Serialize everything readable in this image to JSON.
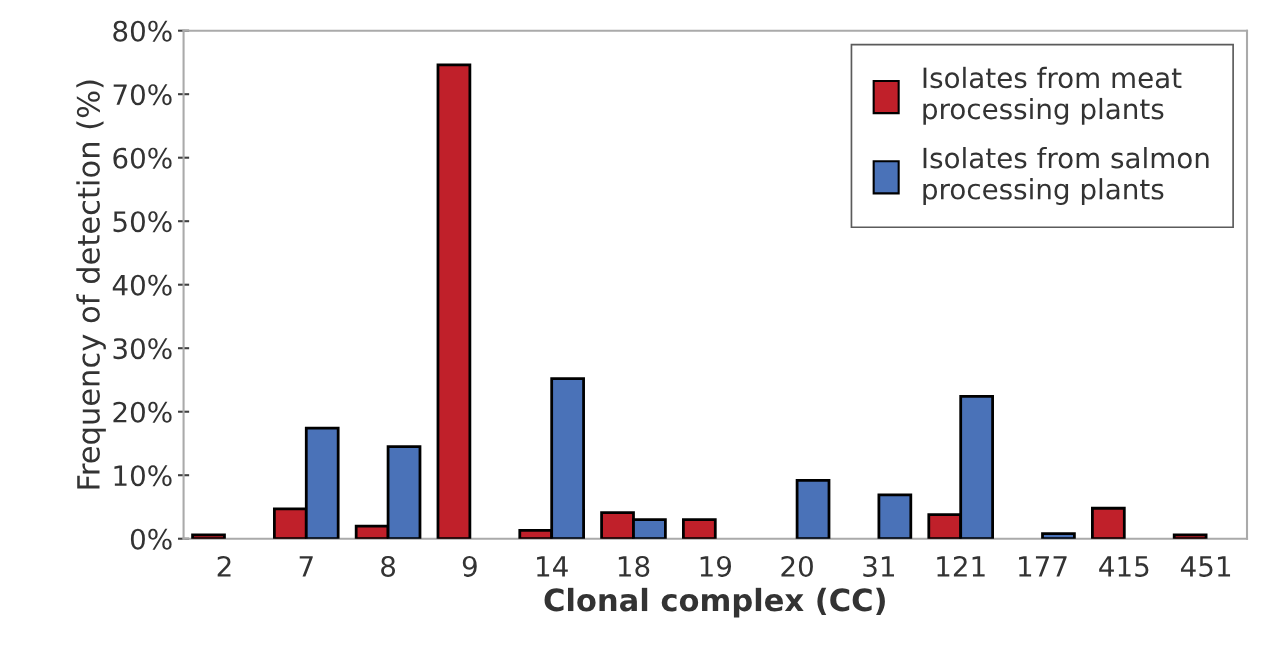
{
  "chart_data": {
    "type": "bar",
    "xlabel": "Clonal complex (CC)",
    "ylabel": "Frequency of detection (%)",
    "categories": [
      "2",
      "7",
      "8",
      "9",
      "14",
      "18",
      "19",
      "20",
      "31",
      "121",
      "177",
      "415",
      "451"
    ],
    "series": [
      {
        "name": "Isolates from meat\nprocessing plants",
        "color": "#c0202a",
        "values": [
          0.6,
          4.7,
          2.0,
          74.6,
          1.3,
          4.1,
          3.0,
          0,
          0,
          3.8,
          0,
          4.8,
          0.6
        ]
      },
      {
        "name": "Isolates from salmon\nprocessing plants",
        "color": "#4a72b8",
        "values": [
          0,
          17.4,
          14.5,
          0,
          25.2,
          3.0,
          0,
          9.2,
          6.9,
          22.4,
          0.8,
          0,
          0
        ]
      }
    ],
    "ylim": [
      0,
      80
    ],
    "yticks": [
      {
        "value": 0,
        "label": "0%"
      },
      {
        "value": 10,
        "label": "10%"
      },
      {
        "value": 20,
        "label": "20%"
      },
      {
        "value": 30,
        "label": "30%"
      },
      {
        "value": 40,
        "label": "40%"
      },
      {
        "value": 50,
        "label": "50%"
      },
      {
        "value": 60,
        "label": "60%"
      },
      {
        "value": 70,
        "label": "70%"
      },
      {
        "value": 80,
        "label": "80%"
      }
    ],
    "grid": false,
    "legend": "top right"
  }
}
